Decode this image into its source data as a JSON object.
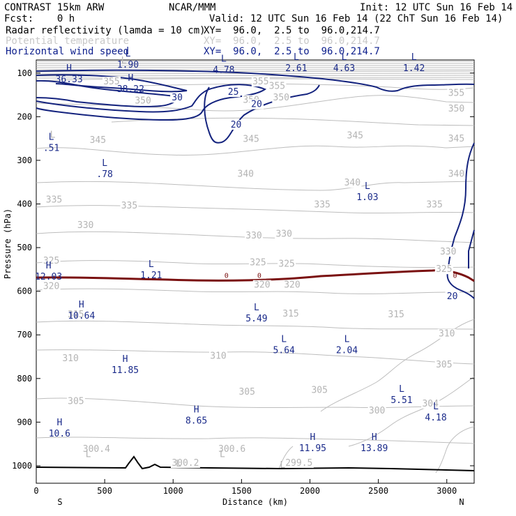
{
  "header": {
    "line1_left": "CONTRAST 15km ARW",
    "line1_mid": "NCAR/MMM",
    "line1_right": "Init: 12 UTC Sun 16 Feb 14",
    "line2_left": "Fcst:    0 h",
    "line2_right": "Valid: 12 UTC Sun 16 Feb 14 (22 ChT Sun 16 Feb 14)",
    "fields": [
      {
        "name": "Radar reflectivity (lamda = 10 cm)",
        "xy": "XY=  96.0,  2.5 to  96.0,214.7"
      },
      {
        "name": "Potential temperature",
        "xy": "XY=  96.0,  2.5 to  96.0,214.7"
      },
      {
        "name": "Horizontal wind speed",
        "xy": "XY=  96.0,  2.5 to  96.0,214.7"
      }
    ]
  },
  "colors": {
    "theta": "#b4b4b4",
    "wind": "#14237e",
    "freezing": "#7a1010",
    "terrain": "#000000"
  },
  "chart_data": {
    "type": "cross-section",
    "xlabel": "Distance (km)",
    "ylabel": "Pressure (hPa)",
    "xlim": [
      0,
      3200
    ],
    "ylim": [
      1040,
      70
    ],
    "xticks": [
      0,
      500,
      1000,
      1500,
      2000,
      2500,
      3000
    ],
    "yticks": [
      100,
      200,
      300,
      400,
      500,
      600,
      700,
      800,
      900,
      1000
    ],
    "endpoints": {
      "left": "S",
      "right": "N"
    },
    "theta_labels": [
      {
        "text": "355",
        "x": 550,
        "p": 126
      },
      {
        "text": "355",
        "x": 1640,
        "p": 126
      },
      {
        "text": "355",
        "x": 1760,
        "p": 136
      },
      {
        "text": "355",
        "x": 3070,
        "p": 152
      },
      {
        "text": "350",
        "x": 780,
        "p": 170
      },
      {
        "text": "350",
        "x": 1570,
        "p": 168
      },
      {
        "text": "350",
        "x": 1790,
        "p": 163
      },
      {
        "text": "350",
        "x": 3070,
        "p": 188
      },
      {
        "text": "345",
        "x": 450,
        "p": 260
      },
      {
        "text": "345",
        "x": 1570,
        "p": 258
      },
      {
        "text": "345",
        "x": 2330,
        "p": 250
      },
      {
        "text": "345",
        "x": 3070,
        "p": 257
      },
      {
        "text": "340",
        "x": 1530,
        "p": 338
      },
      {
        "text": "340",
        "x": 2310,
        "p": 358
      },
      {
        "text": "340",
        "x": 3070,
        "p": 338
      },
      {
        "text": "335",
        "x": 130,
        "p": 397
      },
      {
        "text": "335",
        "x": 680,
        "p": 410
      },
      {
        "text": "335",
        "x": 2090,
        "p": 408
      },
      {
        "text": "335",
        "x": 2910,
        "p": 408
      },
      {
        "text": "330",
        "x": 360,
        "p": 455
      },
      {
        "text": "330",
        "x": 1590,
        "p": 479
      },
      {
        "text": "330",
        "x": 1810,
        "p": 475
      },
      {
        "text": "330",
        "x": 3010,
        "p": 516
      },
      {
        "text": "325",
        "x": 110,
        "p": 537
      },
      {
        "text": "325",
        "x": 1620,
        "p": 541
      },
      {
        "text": "325",
        "x": 1830,
        "p": 544
      },
      {
        "text": "325",
        "x": 2980,
        "p": 556
      },
      {
        "text": "320",
        "x": 110,
        "p": 595
      },
      {
        "text": "320",
        "x": 1650,
        "p": 592
      },
      {
        "text": "320",
        "x": 1870,
        "p": 592
      },
      {
        "text": "315",
        "x": 290,
        "p": 660
      },
      {
        "text": "315",
        "x": 1860,
        "p": 658
      },
      {
        "text": "315",
        "x": 2630,
        "p": 660
      },
      {
        "text": "310",
        "x": 250,
        "p": 760
      },
      {
        "text": "310",
        "x": 1330,
        "p": 755
      },
      {
        "text": "310",
        "x": 3000,
        "p": 704
      },
      {
        "text": "305",
        "x": 2980,
        "p": 775
      },
      {
        "text": "305",
        "x": 290,
        "p": 859
      },
      {
        "text": "305",
        "x": 1540,
        "p": 837
      },
      {
        "text": "305",
        "x": 2070,
        "p": 833
      },
      {
        "text": "300",
        "x": 2490,
        "p": 880
      },
      {
        "text": "304",
        "x": 2880,
        "p": 864
      },
      {
        "text": "300.4",
        "x": 440,
        "p": 968
      },
      {
        "text": "300.2",
        "x": 1090,
        "p": 1000
      },
      {
        "text": "300.6",
        "x": 1430,
        "p": 968
      },
      {
        "text": "299.5",
        "x": 1920,
        "p": 1000
      }
    ],
    "theta_extrema": [
      {
        "kind": "L",
        "x": 640,
        "p": 78
      },
      {
        "kind": "L",
        "x": 120,
        "p": 248
      },
      {
        "kind": "L",
        "x": 1040,
        "p": 1002
      },
      {
        "kind": "L",
        "x": 1360,
        "p": 980
      },
      {
        "kind": "L",
        "x": 380,
        "p": 980
      },
      {
        "kind": "L",
        "x": 1800,
        "p": 1005
      }
    ],
    "wind_labels": [
      {
        "text": "30",
        "x": 1030,
        "p": 163
      },
      {
        "text": "25",
        "x": 1440,
        "p": 150
      },
      {
        "text": "20",
        "x": 1610,
        "p": 178
      },
      {
        "text": "20",
        "x": 1460,
        "p": 225
      },
      {
        "text": "20",
        "x": 3040,
        "p": 618
      }
    ],
    "wind_extrema": [
      {
        "kind": "L",
        "value": "1.90",
        "x": 670,
        "p": 84
      },
      {
        "kind": "H",
        "value": "36.33",
        "x": 240,
        "p": 118
      },
      {
        "kind": "H",
        "value": "38.22",
        "x": 690,
        "p": 140
      },
      {
        "kind": "L",
        "value": "4.78",
        "x": 1370,
        "p": 96
      },
      {
        "kind": "L",
        "value": "2.61",
        "x": 1900,
        "p": 92
      },
      {
        "kind": "L",
        "value": "4.63",
        "x": 2250,
        "p": 92
      },
      {
        "kind": "L",
        "value": "1.42",
        "x": 2760,
        "p": 92
      },
      {
        "kind": "L",
        "value": ".51",
        "x": 110,
        "p": 275
      },
      {
        "kind": "L",
        "value": ".78",
        "x": 500,
        "p": 335
      },
      {
        "kind": "L",
        "value": "1.03",
        "x": 2420,
        "p": 388
      },
      {
        "kind": "H",
        "value": "12.03",
        "x": 90,
        "p": 570
      },
      {
        "kind": "L",
        "value": "1.21",
        "x": 840,
        "p": 567
      },
      {
        "kind": "H",
        "value": "10.64",
        "x": 330,
        "p": 660
      },
      {
        "kind": "L",
        "value": "5.49",
        "x": 1610,
        "p": 666
      },
      {
        "kind": "L",
        "value": "5.64",
        "x": 1810,
        "p": 739
      },
      {
        "kind": "L",
        "value": "2.04",
        "x": 2270,
        "p": 739
      },
      {
        "kind": "H",
        "value": "11.85",
        "x": 650,
        "p": 784
      },
      {
        "kind": "L",
        "value": "5.51",
        "x": 2670,
        "p": 853
      },
      {
        "kind": "L",
        "value": "4.18",
        "x": 2920,
        "p": 893
      },
      {
        "kind": "H",
        "value": "8.65",
        "x": 1170,
        "p": 900
      },
      {
        "kind": "H",
        "value": "10.6",
        "x": 170,
        "p": 930
      },
      {
        "kind": "H",
        "value": "11.95",
        "x": 2020,
        "p": 963
      },
      {
        "kind": "H",
        "value": "13.89",
        "x": 2470,
        "p": 963
      }
    ],
    "freezing_labels": [
      {
        "text": "0",
        "x": 1390,
        "p": 563
      },
      {
        "text": "0",
        "x": 1630,
        "p": 563
      },
      {
        "text": "0",
        "x": 3060,
        "p": 563
      }
    ]
  }
}
